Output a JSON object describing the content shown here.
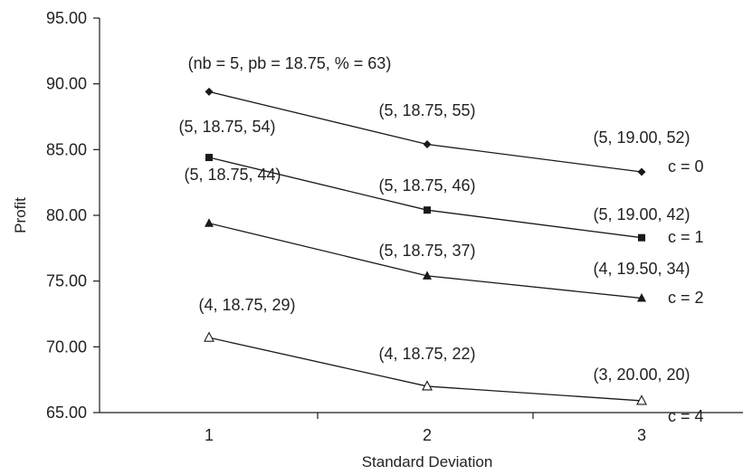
{
  "chart_data": {
    "type": "line",
    "title": "",
    "xlabel": "Standard Deviation",
    "ylabel": "Profit",
    "x": [
      1,
      2,
      3
    ],
    "xtick_labels": [
      "1",
      "2",
      "3"
    ],
    "ylim": [
      65.0,
      95.0
    ],
    "yticks": [
      "65.00",
      "70.00",
      "75.00",
      "80.00",
      "85.00",
      "90.00",
      "95.00"
    ],
    "grid": false,
    "legend": "none",
    "line_color": "#1a1a1a",
    "series": [
      {
        "name": "c = 0",
        "marker": "diamond",
        "values": [
          89.4,
          85.4,
          83.3
        ],
        "point_labels": [
          "(nb = 5, pb = 18.75, % = 63)",
          "(5, 18.75, 55)",
          "(5, 19.00, 52)"
        ]
      },
      {
        "name": "c = 1",
        "marker": "square",
        "values": [
          84.4,
          80.4,
          78.3
        ],
        "point_labels": [
          "(5, 18.75, 54)",
          "(5, 18.75, 46)",
          "(5, 19.00, 42)"
        ]
      },
      {
        "name": "c = 2",
        "marker": "triangle-filled",
        "values": [
          79.4,
          75.4,
          73.7
        ],
        "point_labels": [
          "(5, 18.75, 44)",
          "(5, 18.75, 37)",
          "(4, 19.50, 34)"
        ]
      },
      {
        "name": "c = 4",
        "marker": "triangle-open",
        "values": [
          70.7,
          67.0,
          65.9
        ],
        "point_labels": [
          "(4, 18.75, 29)",
          "(4, 18.75, 22)",
          "(3, 20.00, 20)"
        ]
      }
    ]
  }
}
